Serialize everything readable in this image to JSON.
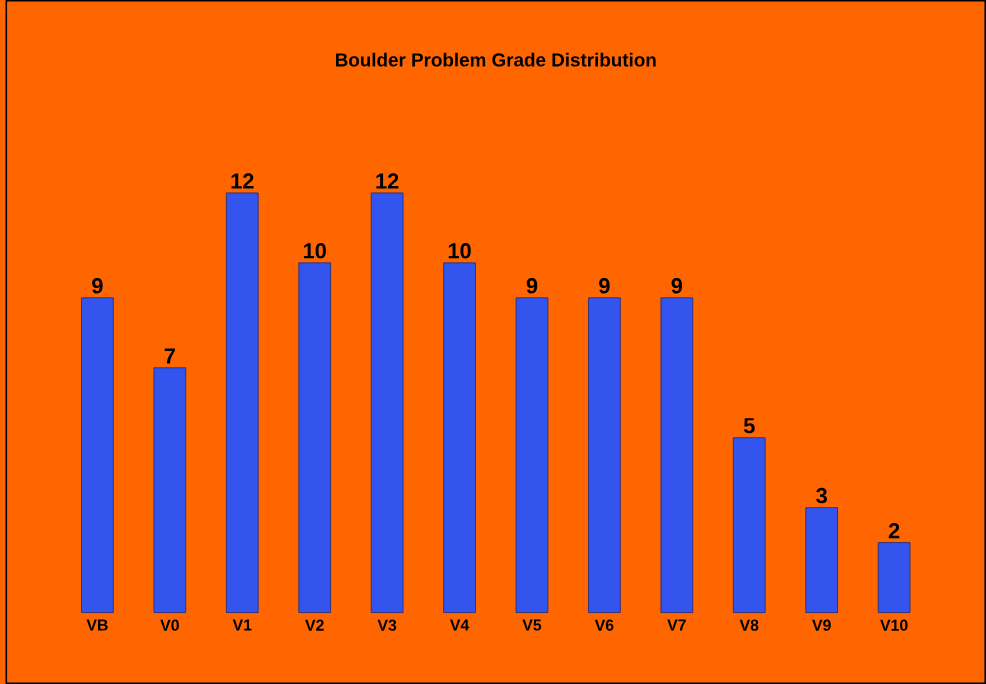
{
  "chart_data": {
    "type": "bar",
    "title": "Boulder Problem Grade Distribution",
    "categories": [
      "VB",
      "V0",
      "V1",
      "V2",
      "V3",
      "V4",
      "V5",
      "V6",
      "V7",
      "V8",
      "V9",
      "V10"
    ],
    "values": [
      9,
      7,
      12,
      10,
      12,
      10,
      9,
      9,
      9,
      5,
      3,
      2
    ],
    "color": "#3355ee",
    "data_labels": true
  }
}
